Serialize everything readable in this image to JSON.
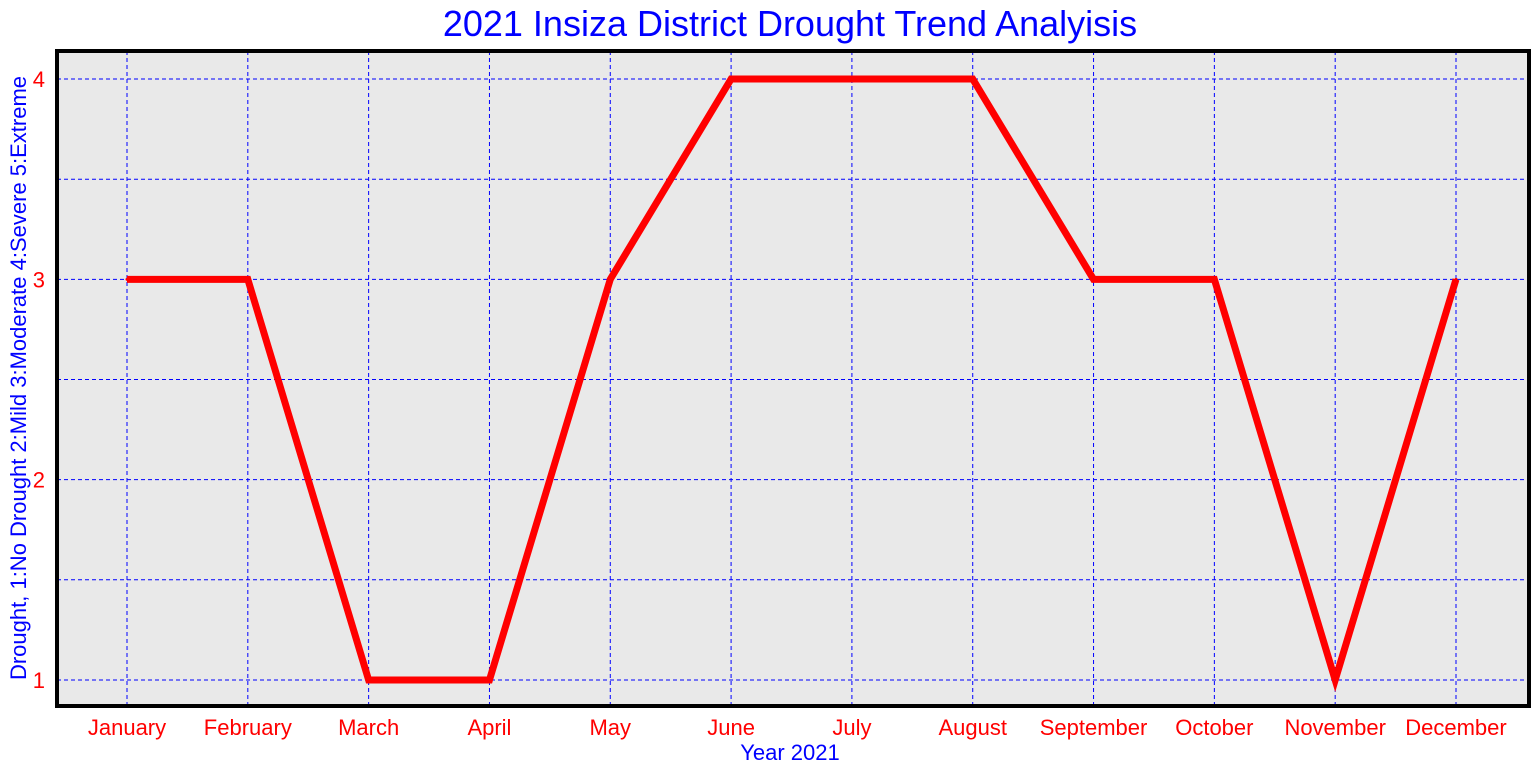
{
  "chart_data": {
    "type": "line",
    "title": "2021 Insiza District Drought Trend Analyisis",
    "xlabel": "Year 2021",
    "ylabel": "Drought, 1:No Drought 2:Mild 3:Moderate 4:Severe 5:Extreme",
    "categories": [
      "January",
      "February",
      "March",
      "April",
      "May",
      "June",
      "July",
      "August",
      "September",
      "October",
      "November",
      "December"
    ],
    "series": [
      {
        "values": [
          3,
          3,
          1,
          1,
          3,
          4,
          4,
          4,
          3,
          3,
          1,
          3
        ]
      }
    ],
    "yticks": [
      "1",
      "2",
      "3",
      "4"
    ],
    "ylim": [
      0.87,
      4.14
    ],
    "grid": true,
    "colors": {
      "line": "#ff0000",
      "grid": "#0000ff",
      "background": "#e9e9e9",
      "frame": "#000000",
      "text": "#0000ff",
      "ticks": "#ff0000"
    }
  }
}
